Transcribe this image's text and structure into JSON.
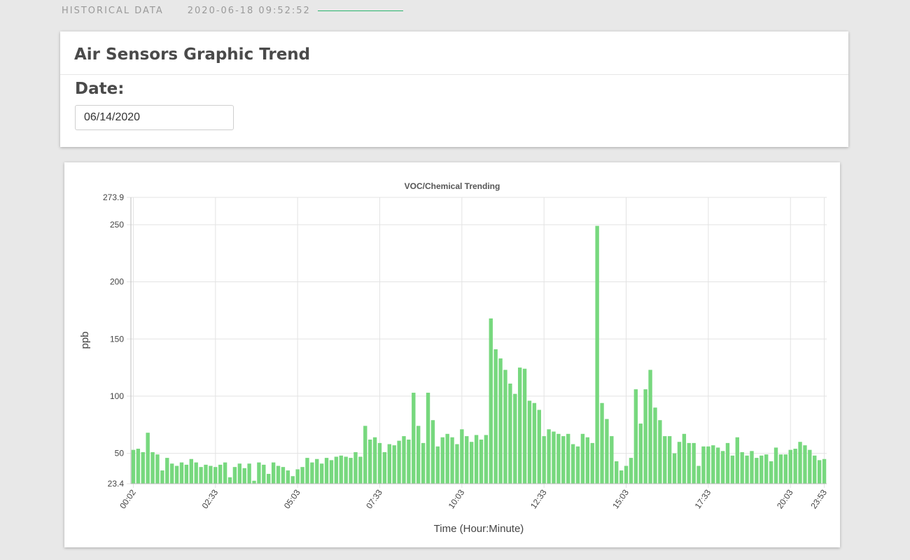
{
  "header": {
    "section": "HISTORICAL DATA",
    "timestamp": "2020-06-18 09:52:52"
  },
  "panel": {
    "title": "Air Sensors Graphic Trend",
    "date_label": "Date:",
    "date_value": "06/14/2020"
  },
  "colors": {
    "background": "#e8e8e8",
    "bar": "#77d87e",
    "accent": "#2ab46d"
  },
  "chart_data": {
    "type": "bar",
    "title": "VOC/Chemical Trending",
    "xlabel": "Time (Hour:Minute)",
    "ylabel": "ppb",
    "ylim": [
      23.4,
      273.9
    ],
    "yticks": [
      23.4,
      50,
      100,
      150,
      200,
      250,
      273.9
    ],
    "xtick_labels": [
      "00:02",
      "02:33",
      "05:03",
      "07:33",
      "10:03",
      "12:33",
      "15:03",
      "17:33",
      "20:03",
      "23:53"
    ],
    "grid": true,
    "color": "#77d87e",
    "values": [
      53,
      54,
      51,
      68,
      51,
      49,
      35,
      46,
      41,
      39,
      42,
      40,
      45,
      42,
      38,
      40,
      39,
      38,
      40,
      42,
      29,
      38,
      41,
      37,
      41,
      26,
      42,
      40,
      32,
      42,
      39,
      38,
      35,
      30,
      36,
      38,
      46,
      42,
      45,
      41,
      46,
      44,
      47,
      48,
      47,
      46,
      51,
      47,
      74,
      62,
      64,
      59,
      51,
      58,
      57,
      61,
      65,
      62,
      103,
      74,
      59,
      103,
      79,
      56,
      64,
      67,
      64,
      58,
      71,
      65,
      60,
      66,
      62,
      66,
      168,
      141,
      133,
      123,
      111,
      102,
      125,
      124,
      96,
      94,
      88,
      65,
      71,
      69,
      67,
      65,
      67,
      58,
      56,
      67,
      64,
      59,
      249,
      94,
      80,
      65,
      43,
      35,
      39,
      46,
      106,
      76,
      106,
      123,
      90,
      79,
      65,
      65,
      50,
      60,
      67,
      59,
      59,
      39,
      56,
      56,
      57,
      55,
      52,
      59,
      48,
      64,
      51,
      48,
      52,
      46,
      48,
      49,
      43,
      55,
      49,
      49,
      53,
      54,
      60,
      57,
      53,
      48,
      44,
      45
    ]
  }
}
